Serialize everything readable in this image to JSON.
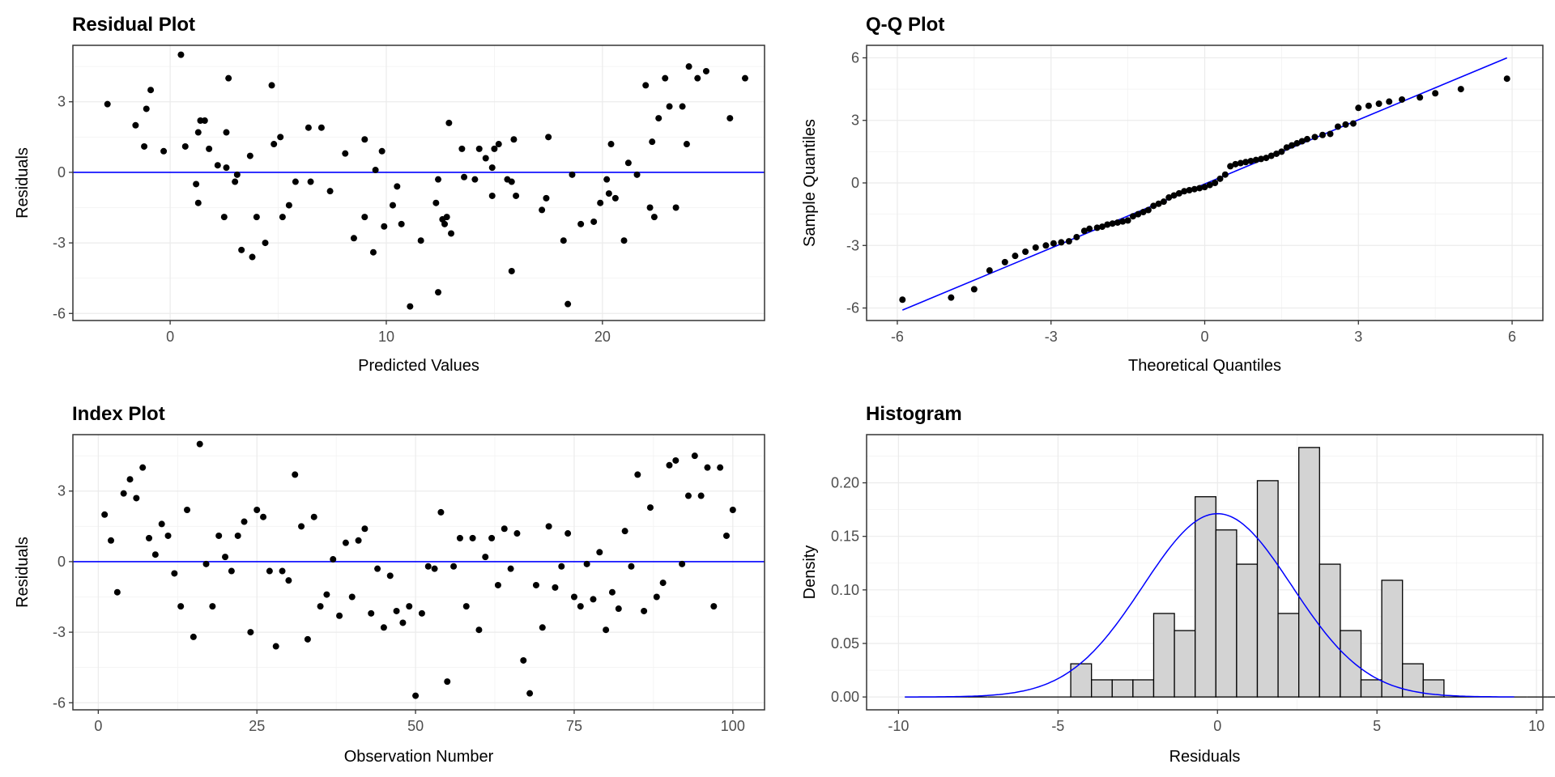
{
  "chart_data": [
    {
      "id": "residual",
      "type": "scatter",
      "title": "Residual Plot",
      "xlabel": "Predicted Values",
      "ylabel": "Residuals",
      "xlim": [
        -4.5,
        27.5
      ],
      "ylim": [
        -6.3,
        5.4
      ],
      "xticks": [
        0,
        10,
        20
      ],
      "yticks": [
        -6,
        -3,
        0,
        3
      ],
      "hline": 0,
      "points": [
        [
          -2.9,
          2.9
        ],
        [
          -1.6,
          2.0
        ],
        [
          -1.2,
          1.1
        ],
        [
          -1.1,
          2.7
        ],
        [
          -0.9,
          3.5
        ],
        [
          -0.3,
          0.9
        ],
        [
          0.5,
          5.0
        ],
        [
          0.7,
          1.1
        ],
        [
          1.2,
          -0.5
        ],
        [
          1.3,
          -1.3
        ],
        [
          1.3,
          1.7
        ],
        [
          1.4,
          2.2
        ],
        [
          1.6,
          2.2
        ],
        [
          1.8,
          1.0
        ],
        [
          2.2,
          0.3
        ],
        [
          2.5,
          -1.9
        ],
        [
          2.6,
          0.2
        ],
        [
          2.6,
          1.7
        ],
        [
          2.7,
          4.0
        ],
        [
          3.0,
          -0.4
        ],
        [
          3.1,
          -0.1
        ],
        [
          3.3,
          -3.3
        ],
        [
          3.7,
          0.7
        ],
        [
          3.8,
          -3.6
        ],
        [
          4.0,
          -1.9
        ],
        [
          4.4,
          -3.0
        ],
        [
          4.7,
          3.7
        ],
        [
          4.8,
          1.2
        ],
        [
          5.1,
          1.5
        ],
        [
          5.2,
          -1.9
        ],
        [
          5.5,
          -1.4
        ],
        [
          5.8,
          -0.4
        ],
        [
          6.4,
          1.9
        ],
        [
          6.5,
          -0.4
        ],
        [
          7.0,
          1.9
        ],
        [
          7.4,
          -0.8
        ],
        [
          8.1,
          0.8
        ],
        [
          8.5,
          -2.8
        ],
        [
          9.0,
          -1.9
        ],
        [
          9.0,
          1.4
        ],
        [
          9.4,
          -3.4
        ],
        [
          9.5,
          0.1
        ],
        [
          9.8,
          0.9
        ],
        [
          9.9,
          -2.3
        ],
        [
          10.3,
          -1.4
        ],
        [
          10.5,
          -0.6
        ],
        [
          10.7,
          -2.2
        ],
        [
          11.1,
          -5.7
        ],
        [
          11.6,
          -2.9
        ],
        [
          12.3,
          -1.3
        ],
        [
          12.4,
          -0.3
        ],
        [
          12.4,
          -5.1
        ],
        [
          12.6,
          -2.0
        ],
        [
          12.7,
          -2.2
        ],
        [
          12.8,
          -1.9
        ],
        [
          12.9,
          2.1
        ],
        [
          13.0,
          -2.6
        ],
        [
          13.5,
          1.0
        ],
        [
          13.6,
          -0.2
        ],
        [
          14.1,
          -0.3
        ],
        [
          14.3,
          1.0
        ],
        [
          14.6,
          0.6
        ],
        [
          14.9,
          -1.0
        ],
        [
          14.9,
          0.2
        ],
        [
          15.0,
          1.0
        ],
        [
          15.2,
          1.2
        ],
        [
          15.6,
          -0.3
        ],
        [
          15.8,
          -4.2
        ],
        [
          15.8,
          -0.4
        ],
        [
          15.9,
          1.4
        ],
        [
          16.0,
          -1.0
        ],
        [
          17.2,
          -1.6
        ],
        [
          17.4,
          -1.1
        ],
        [
          17.5,
          1.5
        ],
        [
          18.2,
          -2.9
        ],
        [
          18.4,
          -5.6
        ],
        [
          18.6,
          -0.1
        ],
        [
          19.0,
          -2.2
        ],
        [
          19.6,
          -2.1
        ],
        [
          19.9,
          -1.3
        ],
        [
          20.2,
          -0.3
        ],
        [
          20.3,
          -0.9
        ],
        [
          20.4,
          1.2
        ],
        [
          20.6,
          -1.1
        ],
        [
          21.0,
          -2.9
        ],
        [
          21.2,
          0.4
        ],
        [
          21.6,
          -0.1
        ],
        [
          22.0,
          3.7
        ],
        [
          22.2,
          -1.5
        ],
        [
          22.3,
          1.3
        ],
        [
          22.4,
          -1.9
        ],
        [
          22.6,
          2.3
        ],
        [
          22.9,
          4.0
        ],
        [
          23.1,
          2.8
        ],
        [
          23.4,
          -1.5
        ],
        [
          23.7,
          2.8
        ],
        [
          23.9,
          1.2
        ],
        [
          24.0,
          4.5
        ],
        [
          24.4,
          4.0
        ],
        [
          24.8,
          4.3
        ],
        [
          25.9,
          2.3
        ],
        [
          26.6,
          4.0
        ]
      ]
    },
    {
      "id": "qq",
      "type": "scatter",
      "title": "Q-Q Plot",
      "xlabel": "Theoretical Quantiles",
      "ylabel": "Sample Quantiles",
      "xlim": [
        -6.6,
        6.6
      ],
      "ylim": [
        -6.6,
        6.6
      ],
      "xticks": [
        -6,
        -3,
        0,
        3,
        6
      ],
      "yticks": [
        -6,
        -3,
        0,
        3,
        6
      ],
      "reference_line": [
        [
          -5.9,
          -6.1
        ],
        [
          5.9,
          6.0
        ]
      ],
      "points": [
        [
          -5.9,
          -5.6
        ],
        [
          -4.95,
          -5.5
        ],
        [
          -4.5,
          -5.1
        ],
        [
          -4.2,
          -4.2
        ],
        [
          -3.9,
          -3.8
        ],
        [
          -3.7,
          -3.5
        ],
        [
          -3.5,
          -3.3
        ],
        [
          -3.3,
          -3.1
        ],
        [
          -3.1,
          -3.0
        ],
        [
          -2.95,
          -2.9
        ],
        [
          -2.8,
          -2.85
        ],
        [
          -2.65,
          -2.8
        ],
        [
          -2.5,
          -2.6
        ],
        [
          -2.35,
          -2.3
        ],
        [
          -2.25,
          -2.2
        ],
        [
          -2.1,
          -2.15
        ],
        [
          -2.0,
          -2.1
        ],
        [
          -1.9,
          -2.0
        ],
        [
          -1.8,
          -1.95
        ],
        [
          -1.7,
          -1.9
        ],
        [
          -1.6,
          -1.85
        ],
        [
          -1.5,
          -1.8
        ],
        [
          -1.4,
          -1.6
        ],
        [
          -1.3,
          -1.5
        ],
        [
          -1.2,
          -1.4
        ],
        [
          -1.1,
          -1.3
        ],
        [
          -1.0,
          -1.1
        ],
        [
          -0.9,
          -1.0
        ],
        [
          -0.8,
          -0.9
        ],
        [
          -0.7,
          -0.7
        ],
        [
          -0.6,
          -0.6
        ],
        [
          -0.5,
          -0.5
        ],
        [
          -0.4,
          -0.4
        ],
        [
          -0.3,
          -0.35
        ],
        [
          -0.2,
          -0.3
        ],
        [
          -0.1,
          -0.25
        ],
        [
          0.0,
          -0.2
        ],
        [
          0.1,
          -0.1
        ],
        [
          0.2,
          0.0
        ],
        [
          0.3,
          0.2
        ],
        [
          0.4,
          0.4
        ],
        [
          0.5,
          0.8
        ],
        [
          0.6,
          0.9
        ],
        [
          0.7,
          0.95
        ],
        [
          0.8,
          1.0
        ],
        [
          0.9,
          1.05
        ],
        [
          1.0,
          1.1
        ],
        [
          1.1,
          1.15
        ],
        [
          1.2,
          1.2
        ],
        [
          1.3,
          1.3
        ],
        [
          1.4,
          1.4
        ],
        [
          1.5,
          1.5
        ],
        [
          1.6,
          1.7
        ],
        [
          1.7,
          1.8
        ],
        [
          1.8,
          1.9
        ],
        [
          1.9,
          2.0
        ],
        [
          2.0,
          2.1
        ],
        [
          2.15,
          2.2
        ],
        [
          2.3,
          2.3
        ],
        [
          2.45,
          2.35
        ],
        [
          2.6,
          2.7
        ],
        [
          2.75,
          2.8
        ],
        [
          2.9,
          2.85
        ],
        [
          3.0,
          3.6
        ],
        [
          3.2,
          3.7
        ],
        [
          3.4,
          3.8
        ],
        [
          3.6,
          3.9
        ],
        [
          3.85,
          4.0
        ],
        [
          4.2,
          4.1
        ],
        [
          4.5,
          4.3
        ],
        [
          5.0,
          4.5
        ],
        [
          5.9,
          5.0
        ]
      ]
    },
    {
      "id": "index",
      "type": "scatter",
      "title": "Index Plot",
      "xlabel": "Observation Number",
      "ylabel": "Residuals",
      "xlim": [
        -4,
        105
      ],
      "ylim": [
        -6.3,
        5.4
      ],
      "xticks": [
        0,
        25,
        50,
        75,
        100
      ],
      "yticks": [
        -6,
        -3,
        0,
        3
      ],
      "hline": 0,
      "points": [
        [
          1,
          2.0
        ],
        [
          2,
          0.9
        ],
        [
          3,
          -1.3
        ],
        [
          4,
          2.9
        ],
        [
          5,
          3.5
        ],
        [
          6,
          2.7
        ],
        [
          7,
          4.0
        ],
        [
          8,
          1.0
        ],
        [
          9,
          0.3
        ],
        [
          10,
          1.6
        ],
        [
          11,
          1.1
        ],
        [
          12,
          -0.5
        ],
        [
          13,
          -1.9
        ],
        [
          14,
          2.2
        ],
        [
          15,
          -3.2
        ],
        [
          16,
          5.0
        ],
        [
          17,
          -0.1
        ],
        [
          18,
          -1.9
        ],
        [
          19,
          1.1
        ],
        [
          20,
          0.2
        ],
        [
          21,
          -0.4
        ],
        [
          22,
          1.1
        ],
        [
          23,
          1.7
        ],
        [
          24,
          -3.0
        ],
        [
          25,
          2.2
        ],
        [
          26,
          1.9
        ],
        [
          27,
          -0.4
        ],
        [
          28,
          -3.6
        ],
        [
          29,
          -0.4
        ],
        [
          30,
          -0.8
        ],
        [
          31,
          3.7
        ],
        [
          32,
          1.5
        ],
        [
          33,
          -3.3
        ],
        [
          34,
          1.9
        ],
        [
          35,
          -1.9
        ],
        [
          36,
          -1.4
        ],
        [
          37,
          0.1
        ],
        [
          38,
          -2.3
        ],
        [
          39,
          0.8
        ],
        [
          40,
          -1.5
        ],
        [
          41,
          0.9
        ],
        [
          42,
          1.4
        ],
        [
          43,
          -2.2
        ],
        [
          44,
          -0.3
        ],
        [
          45,
          -2.8
        ],
        [
          46,
          -0.6
        ],
        [
          47,
          -2.1
        ],
        [
          48,
          -2.6
        ],
        [
          49,
          -1.9
        ],
        [
          50,
          -5.7
        ],
        [
          51,
          -2.2
        ],
        [
          52,
          -0.2
        ],
        [
          53,
          -0.3
        ],
        [
          54,
          2.1
        ],
        [
          55,
          -5.1
        ],
        [
          56,
          -0.2
        ],
        [
          57,
          1.0
        ],
        [
          58,
          -1.9
        ],
        [
          59,
          1.0
        ],
        [
          60,
          -2.9
        ],
        [
          61,
          0.2
        ],
        [
          62,
          1.0
        ],
        [
          63,
          -1.0
        ],
        [
          64,
          1.4
        ],
        [
          65,
          -0.3
        ],
        [
          66,
          1.2
        ],
        [
          67,
          -4.2
        ],
        [
          68,
          -5.6
        ],
        [
          69,
          -1.0
        ],
        [
          70,
          -2.8
        ],
        [
          71,
          1.5
        ],
        [
          72,
          -1.1
        ],
        [
          73,
          -0.2
        ],
        [
          74,
          1.2
        ],
        [
          75,
          -1.5
        ],
        [
          76,
          -1.9
        ],
        [
          77,
          -0.1
        ],
        [
          78,
          -1.6
        ],
        [
          79,
          0.4
        ],
        [
          80,
          -2.9
        ],
        [
          81,
          -1.3
        ],
        [
          82,
          -2.0
        ],
        [
          83,
          1.3
        ],
        [
          84,
          -0.2
        ],
        [
          85,
          3.7
        ],
        [
          86,
          -2.1
        ],
        [
          87,
          2.3
        ],
        [
          88,
          -1.5
        ],
        [
          89,
          -0.9
        ],
        [
          90,
          4.1
        ],
        [
          91,
          4.3
        ],
        [
          92,
          -0.1
        ],
        [
          93,
          2.8
        ],
        [
          94,
          4.5
        ],
        [
          95,
          2.8
        ],
        [
          96,
          4.0
        ],
        [
          97,
          -1.9
        ],
        [
          98,
          4.0
        ],
        [
          99,
          1.1
        ],
        [
          100,
          2.2
        ]
      ]
    },
    {
      "id": "histogram",
      "type": "bar",
      "title": "Histogram",
      "xlabel": "Residuals",
      "ylabel": "Density",
      "xlim": [
        -11,
        10.2
      ],
      "ylim": [
        -0.012,
        0.245
      ],
      "xticks": [
        -10,
        -5,
        0,
        5,
        10
      ],
      "yticks": [
        0.0,
        0.05,
        0.1,
        0.15,
        0.2
      ],
      "ytick_labels": [
        "0.00",
        "0.05",
        "0.10",
        "0.15",
        "0.20"
      ],
      "bin_width": 0.65,
      "bin_edges_start": -9.8,
      "densities": [
        0,
        0,
        0,
        0,
        0,
        0,
        0,
        0,
        0.031,
        0.016,
        0.016,
        0.016,
        0.078,
        0.062,
        0.187,
        0.156,
        0.124,
        0.202,
        0.078,
        0.233,
        0.124,
        0.062,
        0.016,
        0.109,
        0.031,
        0.016,
        0,
        0,
        0,
        0,
        0,
        0
      ],
      "density_curve": {
        "mean": 0,
        "sd": 2.33,
        "x_from": -9.8,
        "x_to": 9.3
      }
    }
  ]
}
